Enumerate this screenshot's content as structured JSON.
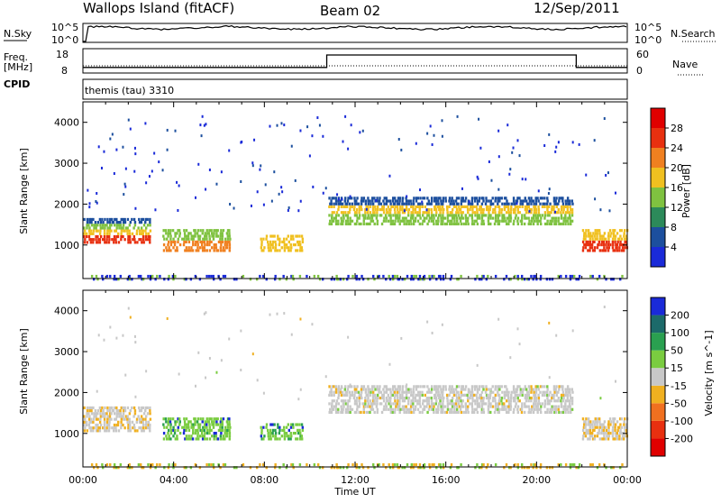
{
  "header": {
    "station": "Wallops Island (fitACF)",
    "beam": "Beam 02",
    "date": "12/Sep/2011"
  },
  "noise_panel": {
    "left_label": "N.Sky",
    "left_tick_top": "10^5",
    "left_tick_bottom": "10^0",
    "right_tick_top": "10^5",
    "right_tick_bottom": "10^0",
    "right_label": "N.Search"
  },
  "freq_panel": {
    "left_label_1": "Freq.",
    "left_label_2": "[MHz]",
    "left_tick_top": "18",
    "left_tick_bottom": "8",
    "right_tick_top": "60",
    "right_tick_bottom": "0",
    "right_label": "Nave",
    "cpid_label": "CPID"
  },
  "cpid_panel": {
    "program": "themis (tau) 3310"
  },
  "chart_data": [
    {
      "type": "heatmap",
      "ylabel": "Slant Range [km]",
      "yticks": [
        "1000",
        "2000",
        "3000",
        "4000"
      ],
      "ylim": [
        180,
        4500
      ],
      "colorbar": {
        "label": "Power [dB]",
        "ticks": [
          "4",
          "8",
          "12",
          "16",
          "20",
          "24",
          "28"
        ],
        "colors": [
          "#1a2ad8",
          "#1c4f9e",
          "#2c8a5a",
          "#7fc240",
          "#f0c020",
          "#f08020",
          "#e83010",
          "#e00000"
        ]
      },
      "features": [
        {
          "start": "00:00",
          "end": "03:00",
          "range_km": [
            1100,
            1700
          ],
          "note": ""
        },
        {
          "start": "03:30",
          "end": "06:30",
          "range_km": [
            900,
            1400
          ],
          "note": ""
        },
        {
          "start": "10:30",
          "end": "21:30",
          "range_km": [
            1500,
            2300
          ],
          "note": ""
        },
        {
          "start": "22:00",
          "end": "24:00",
          "range_km": [
            900,
            1500
          ],
          "note": ""
        }
      ]
    },
    {
      "type": "heatmap",
      "xlabel": "Time UT",
      "ylabel": "Slant Range [km]",
      "yticks": [
        "1000",
        "2000",
        "3000",
        "4000"
      ],
      "xticks": [
        "00:00",
        "04:00",
        "08:00",
        "12:00",
        "16:00",
        "20:00",
        "00:00"
      ],
      "ylim": [
        180,
        4500
      ],
      "colorbar": {
        "label": "Velocity [m s^-1]",
        "ticks": [
          "200",
          "100",
          "50",
          "15",
          "-15",
          "-50",
          "-100",
          "-200"
        ],
        "colors": [
          "#1a2ad8",
          "#1c6a6a",
          "#2aa050",
          "#7acc40",
          "#c8c8c8",
          "#f0b020",
          "#f07020",
          "#e83010",
          "#e00000"
        ]
      }
    }
  ],
  "nsky_series": {
    "note": "",
    "values": []
  },
  "freq_series": {
    "freq_mhz": [
      {
        "start": "00:00",
        "end": "10:45",
        "value": 10.3
      },
      {
        "start": "10:45",
        "end": "21:45",
        "value": 15.4
      },
      {
        "start": "21:45",
        "end": "24:00",
        "value": 10.3
      }
    ]
  }
}
